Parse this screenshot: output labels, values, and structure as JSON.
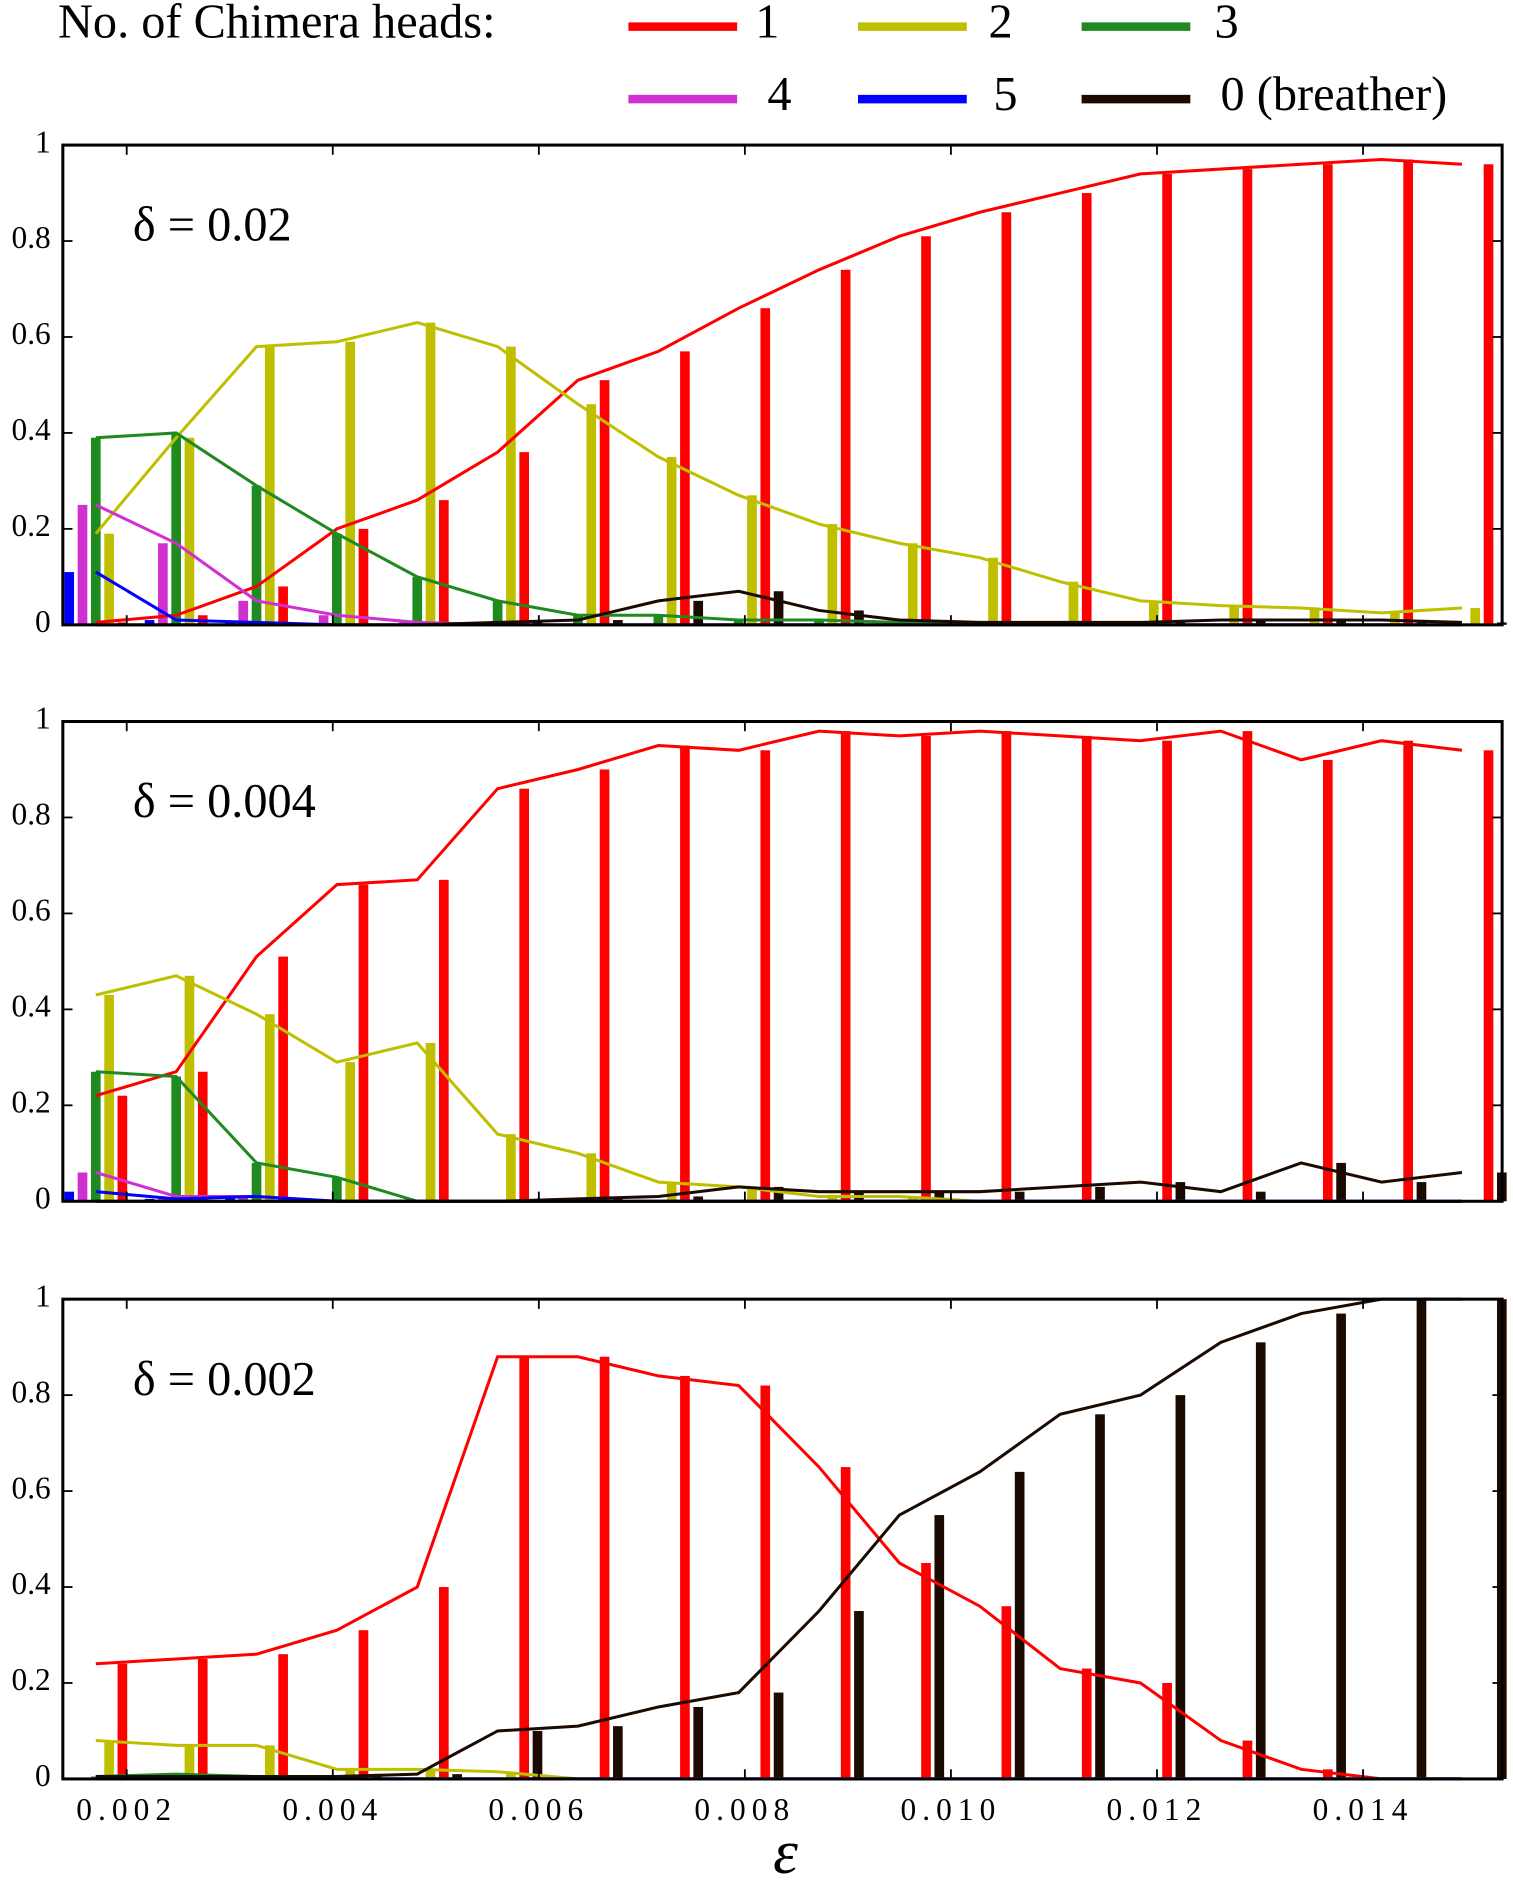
{
  "chart_data": {
    "type": "bar_line",
    "legend_title": "No. of Chimera heads:",
    "xlabel": "ε",
    "x": [
      0.0017,
      0.00248,
      0.00326,
      0.00404,
      0.00482,
      0.0056,
      0.00638,
      0.00716,
      0.00794,
      0.00872,
      0.0095,
      0.01028,
      0.01106,
      0.01184,
      0.01262,
      0.0134,
      0.01418,
      0.01496
    ],
    "xlim": [
      0.00138,
      0.01535
    ],
    "xticks": [
      0.002,
      0.004,
      0.006,
      0.008,
      {
        "value": 0.01,
        "label": "0.010"
      },
      0.012,
      0.014
    ],
    "ylim": [
      0,
      1
    ],
    "yticks": [
      0,
      0.2,
      0.4,
      0.6,
      0.8,
      1
    ],
    "series": [
      {
        "name": "1",
        "color": "#ff0000"
      },
      {
        "name": "2",
        "color": "#bfbf00"
      },
      {
        "name": "3",
        "color": "#1f8a1f"
      },
      {
        "name": "4",
        "color": "#d030d0"
      },
      {
        "name": "5",
        "color": "#0000ff"
      },
      {
        "name": "0 (breather)",
        "color": "#1a0a00"
      }
    ],
    "panels": [
      {
        "label": "δ = 0.02",
        "series": [
          {
            "values": [
              0.005,
              0.02,
              0.08,
              0.2,
              0.26,
              0.36,
              0.51,
              0.57,
              0.66,
              0.74,
              0.81,
              0.86,
              0.9,
              0.94,
              0.95,
              0.96,
              0.97,
              0.96
            ]
          },
          {
            "values": [
              0.19,
              0.39,
              0.58,
              0.59,
              0.63,
              0.58,
              0.46,
              0.35,
              0.27,
              0.21,
              0.17,
              0.14,
              0.09,
              0.05,
              0.04,
              0.035,
              0.025,
              0.035
            ]
          },
          {
            "values": [
              0.39,
              0.4,
              0.29,
              0.19,
              0.1,
              0.05,
              0.02,
              0.02,
              0.01,
              0.01,
              0.005,
              0,
              0,
              0,
              0,
              0,
              0,
              0
            ]
          },
          {
            "values": [
              0.25,
              0.17,
              0.05,
              0.02,
              0.005,
              0,
              0,
              0,
              0,
              0,
              0,
              0,
              0,
              0,
              0,
              0,
              0,
              0
            ]
          },
          {
            "values": [
              0.11,
              0.01,
              0.005,
              0,
              0,
              0,
              0,
              0,
              0,
              0,
              0,
              0,
              0,
              0,
              0,
              0,
              0,
              0
            ]
          },
          {
            "values": [
              0,
              0,
              0,
              0,
              0,
              0.005,
              0.01,
              0.05,
              0.07,
              0.03,
              0.01,
              0.005,
              0.005,
              0.005,
              0.01,
              0.01,
              0.01,
              0.005
            ]
          }
        ]
      },
      {
        "label": "δ = 0.004",
        "series": [
          {
            "values": [
              0.22,
              0.27,
              0.51,
              0.66,
              0.67,
              0.86,
              0.9,
              0.95,
              0.94,
              0.98,
              0.97,
              0.98,
              0.97,
              0.96,
              0.98,
              0.92,
              0.96,
              0.94
            ]
          },
          {
            "values": [
              0.43,
              0.47,
              0.39,
              0.29,
              0.33,
              0.14,
              0.1,
              0.04,
              0.03,
              0.01,
              0.01,
              0,
              0,
              0,
              0,
              0,
              0,
              0
            ]
          },
          {
            "values": [
              0.27,
              0.26,
              0.08,
              0.05,
              0,
              0,
              0,
              0,
              0,
              0,
              0,
              0,
              0,
              0,
              0,
              0,
              0,
              0
            ]
          },
          {
            "values": [
              0.06,
              0.01,
              0.01,
              0,
              0,
              0,
              0,
              0,
              0,
              0,
              0,
              0,
              0,
              0,
              0,
              0,
              0,
              0
            ]
          },
          {
            "values": [
              0.02,
              0.005,
              0.01,
              0,
              0,
              0,
              0,
              0,
              0,
              0,
              0,
              0,
              0,
              0,
              0,
              0,
              0,
              0
            ]
          },
          {
            "values": [
              0,
              0,
              0,
              0,
              0,
              0,
              0.005,
              0.01,
              0.03,
              0.02,
              0.02,
              0.02,
              0.03,
              0.04,
              0.02,
              0.08,
              0.04,
              0.06
            ]
          }
        ]
      },
      {
        "label": "δ = 0.002",
        "series": [
          {
            "values": [
              0.24,
              0.25,
              0.26,
              0.31,
              0.4,
              0.88,
              0.88,
              0.84,
              0.82,
              0.65,
              0.45,
              0.36,
              0.23,
              0.2,
              0.08,
              0.02,
              0,
              0
            ]
          },
          {
            "values": [
              0.08,
              0.07,
              0.07,
              0.02,
              0.02,
              0.015,
              0,
              0,
              0,
              0,
              0,
              0,
              0,
              0,
              0,
              0,
              0,
              0
            ]
          },
          {
            "values": [
              0.005,
              0.01,
              0.005,
              0,
              0,
              0,
              0,
              0,
              0,
              0,
              0,
              0,
              0,
              0,
              0,
              0,
              0,
              0
            ]
          },
          {
            "values": [
              0,
              0,
              0,
              0,
              0,
              0,
              0,
              0,
              0,
              0,
              0,
              0,
              0,
              0,
              0,
              0,
              0,
              0
            ]
          },
          {
            "values": [
              0,
              0,
              0,
              0,
              0,
              0,
              0,
              0,
              0,
              0,
              0,
              0,
              0,
              0,
              0,
              0,
              0,
              0
            ]
          },
          {
            "values": [
              0.005,
              0.005,
              0.005,
              0.005,
              0.01,
              0.1,
              0.11,
              0.15,
              0.18,
              0.35,
              0.55,
              0.64,
              0.76,
              0.8,
              0.91,
              0.97,
              1,
              1
            ]
          }
        ]
      }
    ]
  }
}
